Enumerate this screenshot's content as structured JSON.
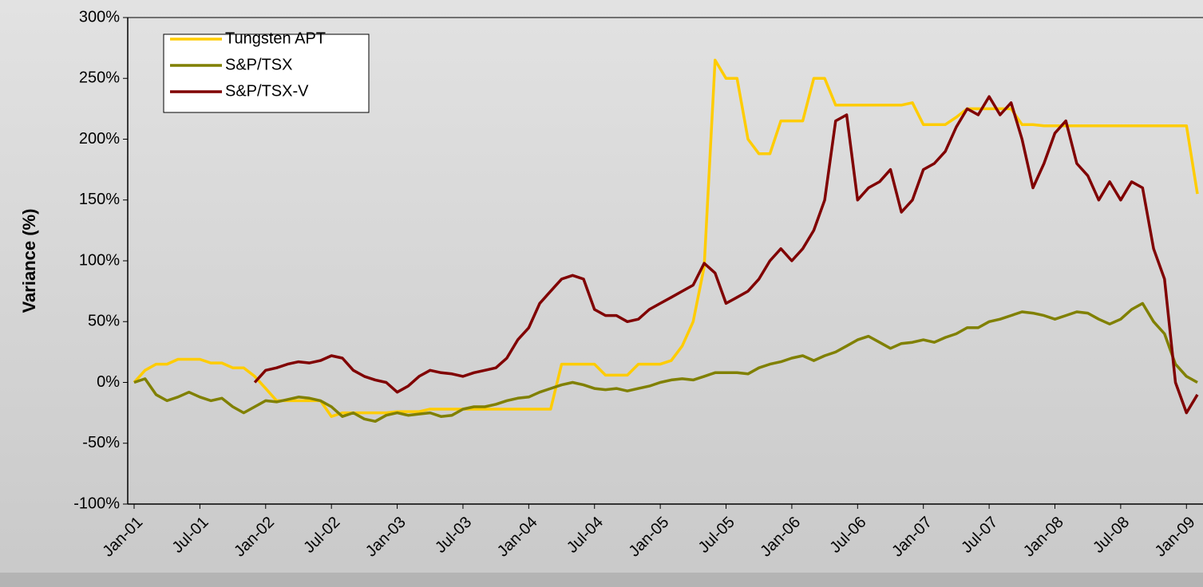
{
  "chart_data": {
    "type": "line",
    "y_label": "Variance (%)",
    "x": [
      "2001-01",
      "2001-02",
      "2001-03",
      "2001-04",
      "2001-05",
      "2001-06",
      "2001-07",
      "2001-08",
      "2001-09",
      "2001-10",
      "2001-11",
      "2001-12",
      "2002-01",
      "2002-02",
      "2002-03",
      "2002-04",
      "2002-05",
      "2002-06",
      "2002-07",
      "2002-08",
      "2002-09",
      "2002-10",
      "2002-11",
      "2002-12",
      "2003-01",
      "2003-02",
      "2003-03",
      "2003-04",
      "2003-05",
      "2003-06",
      "2003-07",
      "2003-08",
      "2003-09",
      "2003-10",
      "2003-11",
      "2003-12",
      "2004-01",
      "2004-02",
      "2004-03",
      "2004-04",
      "2004-05",
      "2004-06",
      "2004-07",
      "2004-08",
      "2004-09",
      "2004-10",
      "2004-11",
      "2004-12",
      "2005-01",
      "2005-02",
      "2005-03",
      "2005-04",
      "2005-05",
      "2005-06",
      "2005-07",
      "2005-08",
      "2005-09",
      "2005-10",
      "2005-11",
      "2005-12",
      "2006-01",
      "2006-02",
      "2006-03",
      "2006-04",
      "2006-05",
      "2006-06",
      "2006-07",
      "2006-08",
      "2006-09",
      "2006-10",
      "2006-11",
      "2006-12",
      "2007-01",
      "2007-02",
      "2007-03",
      "2007-04",
      "2007-05",
      "2007-06",
      "2007-07",
      "2007-08",
      "2007-09",
      "2007-10",
      "2007-11",
      "2007-12",
      "2008-01",
      "2008-02",
      "2008-03",
      "2008-04",
      "2008-05",
      "2008-06",
      "2008-07",
      "2008-08",
      "2008-09",
      "2008-10",
      "2008-11",
      "2008-12",
      "2009-01",
      "2009-02"
    ],
    "series": [
      {
        "name": "Tungsten APT",
        "color": "#ffcc00",
        "values": [
          0,
          10,
          15,
          15,
          19,
          19,
          19,
          16,
          16,
          12,
          12,
          5,
          -5,
          -15,
          -15,
          -15,
          -15,
          -15,
          -28,
          -25,
          -25,
          -25,
          -25,
          -25,
          -24,
          -24,
          -24,
          -22,
          -22,
          -22,
          -22,
          -22,
          -22,
          -22,
          -22,
          -22,
          -22,
          -22,
          -22,
          15,
          15,
          15,
          15,
          6,
          6,
          6,
          15,
          15,
          15,
          18,
          30,
          50,
          95,
          265,
          250,
          250,
          200,
          188,
          188,
          215,
          215,
          215,
          250,
          250,
          228,
          228,
          228,
          228,
          228,
          228,
          228,
          230,
          212,
          212,
          212,
          218,
          225,
          225,
          225,
          225,
          225,
          212,
          212,
          211,
          211,
          211,
          211,
          211,
          211,
          211,
          211,
          211,
          211,
          211,
          211,
          211,
          211,
          155
        ]
      },
      {
        "name": "S&P/TSX",
        "color": "#808000",
        "values": [
          0,
          3,
          -10,
          -15,
          -12,
          -8,
          -12,
          -15,
          -13,
          -20,
          -25,
          -20,
          -15,
          -16,
          -14,
          -12,
          -13,
          -15,
          -20,
          -28,
          -25,
          -30,
          -32,
          -27,
          -25,
          -27,
          -26,
          -25,
          -28,
          -27,
          -22,
          -20,
          -20,
          -18,
          -15,
          -13,
          -12,
          -8,
          -5,
          -2,
          0,
          -2,
          -5,
          -6,
          -5,
          -7,
          -5,
          -3,
          0,
          2,
          3,
          2,
          5,
          8,
          8,
          8,
          7,
          12,
          15,
          17,
          20,
          22,
          18,
          22,
          25,
          30,
          35,
          38,
          33,
          28,
          32,
          33,
          35,
          33,
          37,
          40,
          45,
          45,
          50,
          52,
          55,
          58,
          57,
          55,
          52,
          55,
          58,
          57,
          52,
          48,
          52,
          60,
          65,
          50,
          40,
          15,
          5,
          0
        ]
      },
      {
        "name": "S&P/TSX-V",
        "color": "#800000",
        "values": [
          null,
          null,
          null,
          null,
          null,
          null,
          null,
          null,
          null,
          null,
          null,
          0,
          10,
          12,
          15,
          17,
          16,
          18,
          22,
          20,
          10,
          5,
          2,
          0,
          -8,
          -3,
          5,
          10,
          8,
          7,
          5,
          8,
          10,
          12,
          20,
          35,
          45,
          65,
          75,
          85,
          88,
          85,
          60,
          55,
          55,
          50,
          52,
          60,
          65,
          70,
          75,
          80,
          98,
          90,
          65,
          70,
          75,
          85,
          100,
          110,
          100,
          110,
          125,
          150,
          215,
          220,
          150,
          160,
          165,
          175,
          140,
          150,
          175,
          180,
          190,
          210,
          225,
          220,
          235,
          220,
          230,
          200,
          160,
          180,
          205,
          215,
          180,
          170,
          150,
          165,
          150,
          165,
          160,
          110,
          85,
          0,
          -25,
          -10
        ]
      }
    ],
    "xlim": [
      "2001-01",
      "2009-02"
    ],
    "xticks": [
      {
        "value": "2001-01",
        "label": "Jan-01"
      },
      {
        "value": "2001-07",
        "label": "Jul-01"
      },
      {
        "value": "2002-01",
        "label": "Jan-02"
      },
      {
        "value": "2002-07",
        "label": "Jul-02"
      },
      {
        "value": "2003-01",
        "label": "Jan-03"
      },
      {
        "value": "2003-07",
        "label": "Jul-03"
      },
      {
        "value": "2004-01",
        "label": "Jan-04"
      },
      {
        "value": "2004-07",
        "label": "Jul-04"
      },
      {
        "value": "2005-01",
        "label": "Jan-05"
      },
      {
        "value": "2005-07",
        "label": "Jul-05"
      },
      {
        "value": "2006-01",
        "label": "Jan-06"
      },
      {
        "value": "2006-07",
        "label": "Jul-06"
      },
      {
        "value": "2007-01",
        "label": "Jan-07"
      },
      {
        "value": "2007-07",
        "label": "Jul-07"
      },
      {
        "value": "2008-01",
        "label": "Jan-08"
      },
      {
        "value": "2008-07",
        "label": "Jul-08"
      },
      {
        "value": "2009-01",
        "label": "Jan-09"
      }
    ],
    "ylim": [
      -100,
      300
    ],
    "yticks": [
      {
        "value": -100,
        "label": "-100%"
      },
      {
        "value": -50,
        "label": "-50%"
      },
      {
        "value": 0,
        "label": "0%"
      },
      {
        "value": 50,
        "label": "50%"
      },
      {
        "value": 100,
        "label": "100%"
      },
      {
        "value": 150,
        "label": "150%"
      },
      {
        "value": 200,
        "label": "200%"
      },
      {
        "value": 250,
        "label": "250%"
      },
      {
        "value": 300,
        "label": "300%"
      }
    ],
    "grid": false,
    "legend": "top-left"
  }
}
